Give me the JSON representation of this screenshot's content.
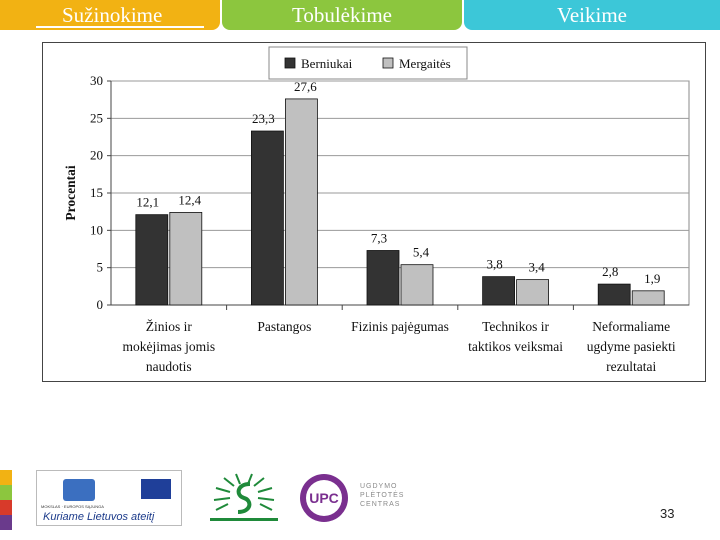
{
  "tabs": [
    "Sužinokime",
    "Tobulėkime",
    "Veikime"
  ],
  "colors": {
    "tab1": "#f2b213",
    "tab2": "#8cc63e",
    "tab3": "#3cc7d8",
    "berniukai": "#333333",
    "mergaites": "#c0c0c0"
  },
  "chart_data": {
    "type": "bar",
    "ylabel": "Procentai",
    "ylim": [
      0,
      30
    ],
    "yticks": [
      "0",
      "5",
      "10",
      "15",
      "20",
      "25",
      "30"
    ],
    "categories": [
      [
        "Žinios ir",
        "mokėjimas jomis",
        "naudotis"
      ],
      [
        "Pastangos"
      ],
      [
        "Fizinis pajėgumas"
      ],
      [
        "Technikos ir",
        "taktikos veiksmai"
      ],
      [
        "Neformaliame",
        "ugdyme pasiekti",
        "rezultatai"
      ]
    ],
    "series": [
      {
        "name": "Berniukai",
        "values": [
          12.1,
          23.3,
          7.3,
          3.8,
          2.8
        ],
        "labels": [
          "12,1",
          "23,3",
          "7,3",
          "3,8",
          "2,8"
        ]
      },
      {
        "name": "Mergaitės",
        "values": [
          12.4,
          27.6,
          5.4,
          3.4,
          1.9
        ],
        "labels": [
          "12,4",
          "27,6",
          "5,4",
          "3,4",
          "1,9"
        ]
      }
    ],
    "legend_position": "top-center",
    "grid": true
  },
  "footer": {
    "page_number": "33",
    "eu_slogan": "Kuriame Lietuvos ateitį",
    "eu_small": "MOKSLAS · EUROPOS SĄJUNGA",
    "upc_lines": [
      "UGDYMO",
      "PLĖTOTĖS",
      "CENTRAS"
    ],
    "upc_mark": "UPC"
  }
}
